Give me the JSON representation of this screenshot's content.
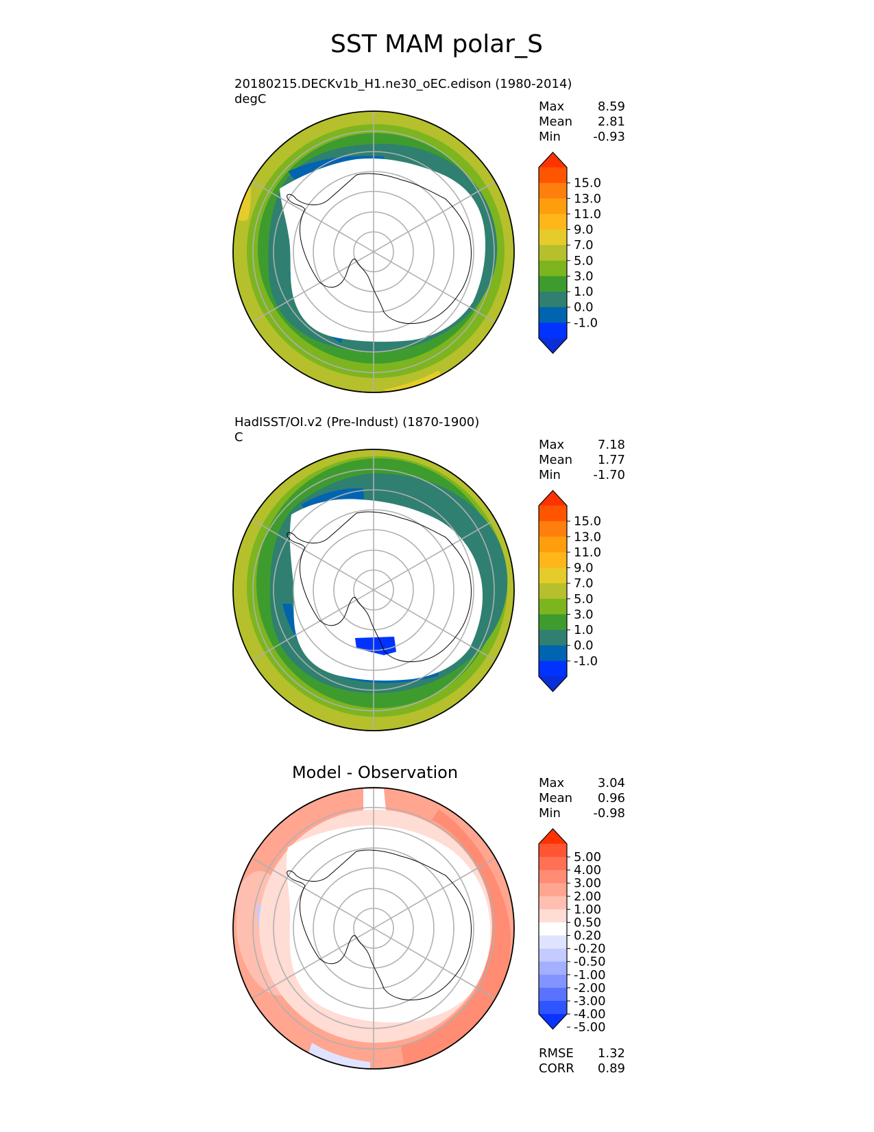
{
  "figure": {
    "title": "SST MAM polar_S"
  },
  "panels": [
    {
      "id": "model",
      "title_line1": "20180215.DECKv1b_H1.ne30_oEC.edison (1980-2014)",
      "title_line2": "degC",
      "stats": [
        {
          "label": "Max",
          "value": "8.59"
        },
        {
          "label": "Mean",
          "value": "2.81"
        },
        {
          "label": "Min",
          "value": "-0.93"
        }
      ],
      "colorbar": {
        "ticks": [
          "15.0",
          "13.0",
          "11.0",
          "9.0",
          "7.0",
          "5.0",
          "3.0",
          "1.0",
          "0.0",
          "-1.0"
        ],
        "colors_top_to_bottom": [
          "#ff3300",
          "#ff5500",
          "#ff7f0e",
          "#ff9e0d",
          "#ffb619",
          "#e5cc2a",
          "#b5c02c",
          "#7db51f",
          "#3e9c2e",
          "#2f8070",
          "#0064b0",
          "#0033ff",
          "#0a2ed8"
        ]
      },
      "map_palette": {
        "ring_outer": "#b5c02c",
        "ring_mid": "#7db51f",
        "ring_inner": "#3e9c2e",
        "near_ice": "#2f8070",
        "ice_edge": "#0064b0",
        "warm_patch": "#e5cc2a"
      }
    },
    {
      "id": "obs",
      "title_line1": "HadISST/OI.v2 (Pre-Indust) (1870-1900)",
      "title_line2": "C",
      "stats": [
        {
          "label": "Max",
          "value": "7.18"
        },
        {
          "label": "Mean",
          "value": "1.77"
        },
        {
          "label": "Min",
          "value": "-1.70"
        }
      ],
      "colorbar": {
        "ticks": [
          "15.0",
          "13.0",
          "11.0",
          "9.0",
          "7.0",
          "5.0",
          "3.0",
          "1.0",
          "0.0",
          "-1.0"
        ],
        "colors_top_to_bottom": [
          "#ff3300",
          "#ff5500",
          "#ff7f0e",
          "#ff9e0d",
          "#ffb619",
          "#e5cc2a",
          "#b5c02c",
          "#7db51f",
          "#3e9c2e",
          "#2f8070",
          "#0064b0",
          "#0033ff",
          "#0a2ed8"
        ]
      },
      "map_palette": {
        "ring_outer": "#b5c02c",
        "ring_mid": "#7db51f",
        "ring_inner": "#3e9c2e",
        "near_ice": "#2f8070",
        "ice_edge": "#0064b0",
        "cold_patch": "#0033ff"
      }
    },
    {
      "id": "diff",
      "title": "Model - Observation",
      "stats": [
        {
          "label": "Max",
          "value": "3.04"
        },
        {
          "label": "Mean",
          "value": "0.96"
        },
        {
          "label": "Min",
          "value": "-0.98"
        }
      ],
      "colorbar": {
        "ticks": [
          "5.00",
          "4.00",
          "3.00",
          "2.00",
          "1.00",
          "0.50",
          "0.20",
          "-0.20",
          "-0.50",
          "-1.00",
          "-2.00",
          "-3.00",
          "-4.00",
          "-5.00"
        ],
        "colors_top_to_bottom": [
          "#ff3300",
          "#ff5533",
          "#ff7055",
          "#ff8c73",
          "#ffa590",
          "#ffbfb0",
          "#ffdcd4",
          "#ffffff",
          "#dfe3ff",
          "#c3cbff",
          "#a3afff",
          "#8294ff",
          "#5a73ff",
          "#2e55ff",
          "#0a33ff"
        ]
      },
      "map_palette": {
        "pos_strong": "#ff8c73",
        "pos_mid": "#ffa590",
        "pos_weak": "#ffbfb0",
        "pos_faint": "#ffdcd4",
        "neutral": "#ffffff",
        "neg_weak": "#dfe3ff",
        "neg_mid": "#c3cbff"
      },
      "extra_stats": [
        {
          "label": "RMSE",
          "value": "1.32"
        },
        {
          "label": "CORR",
          "value": "0.89"
        }
      ]
    }
  ]
}
